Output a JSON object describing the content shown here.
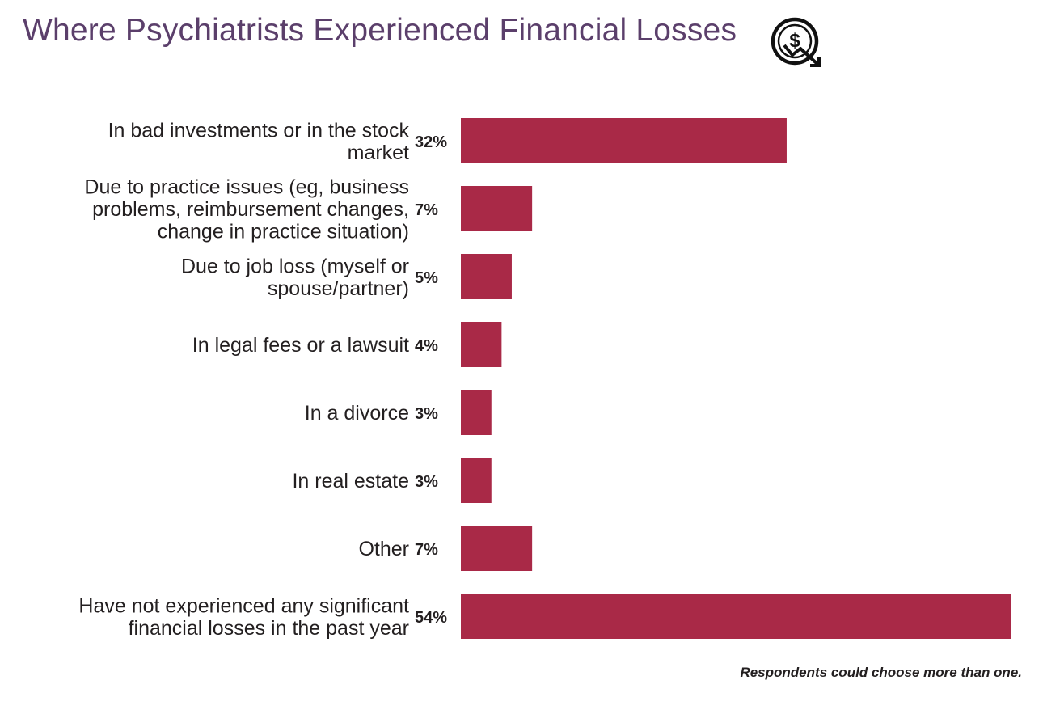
{
  "title": "Where Psychiatrists Experienced Financial Losses",
  "icon": "money-loss-icon",
  "footnote": "Respondents could choose more than one.",
  "colors": {
    "bar": "#a92947",
    "title": "#5b3f6b",
    "text": "#231f20"
  },
  "chart_data": {
    "type": "bar",
    "orientation": "horizontal",
    "unit": "%",
    "categories": [
      [
        "In bad investments or in the stock",
        "market"
      ],
      [
        "Due to practice issues (eg, business",
        "problems, reimbursement changes,",
        "change in practice situation)"
      ],
      [
        "Due to job loss (myself or",
        "spouse/partner)"
      ],
      [
        "In legal fees or a lawsuit"
      ],
      [
        "In a divorce"
      ],
      [
        "In real estate"
      ],
      [
        "Other"
      ],
      [
        "Have not experienced any significant",
        "financial losses in the past year"
      ]
    ],
    "values": [
      32,
      7,
      5,
      4,
      3,
      3,
      7,
      54
    ],
    "value_labels": [
      "32%",
      "7%",
      "5%",
      "4%",
      "3%",
      "3%",
      "7%",
      "54%"
    ],
    "xlim": [
      0,
      54
    ],
    "grid": false,
    "legend": false
  }
}
